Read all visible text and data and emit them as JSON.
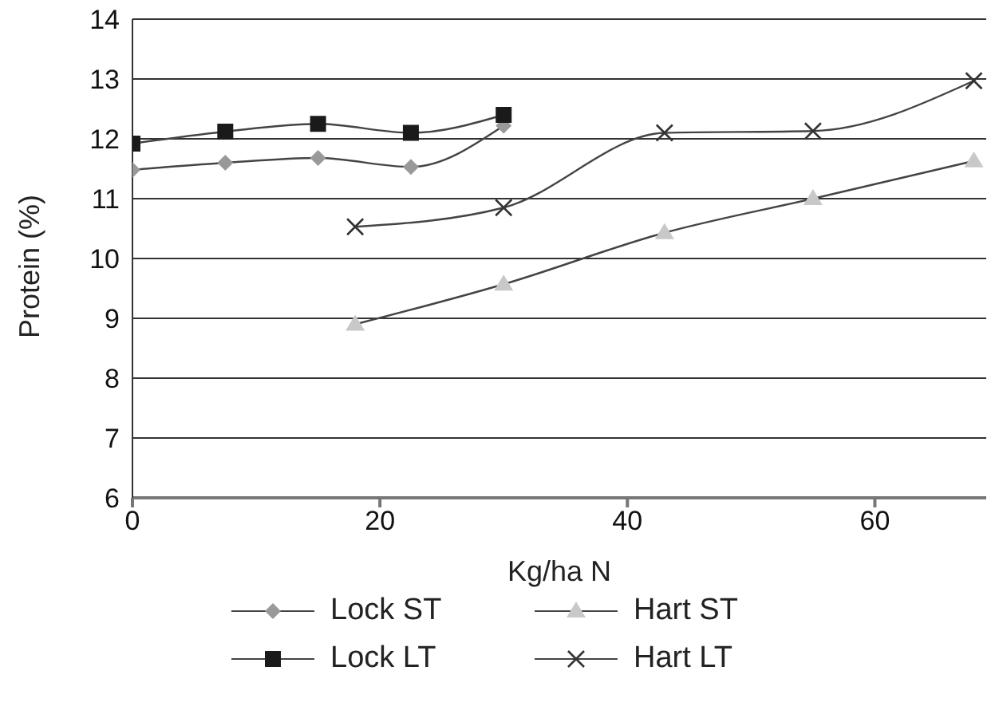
{
  "chart_data": {
    "type": "line",
    "xlabel": "Kg/ha N",
    "ylabel": "Protein (%)",
    "xlim": [
      0,
      69
    ],
    "xticks": [
      0,
      20,
      40,
      60
    ],
    "ylim": [
      6,
      14
    ],
    "yticks": [
      6,
      7,
      8,
      9,
      10,
      11,
      12,
      13,
      14
    ],
    "grid": "y",
    "legend": "bottom",
    "line_style": "solid",
    "series": [
      {
        "name": "Lock ST",
        "color": "#999999",
        "marker": "diamond",
        "x": [
          0,
          7.5,
          15,
          22.5,
          30
        ],
        "values": [
          11.48,
          11.6,
          11.68,
          11.53,
          12.22
        ]
      },
      {
        "name": "Hart ST",
        "color": "#c8c8c8",
        "marker": "triangle",
        "x": [
          18,
          30,
          43,
          55,
          68
        ],
        "values": [
          8.9,
          9.57,
          10.43,
          11.0,
          11.63
        ]
      },
      {
        "name": "Lock LT",
        "color": "#1a1a1a",
        "marker": "square",
        "x": [
          0,
          7.5,
          15,
          22.5,
          30
        ],
        "values": [
          11.92,
          12.12,
          12.25,
          12.1,
          12.4
        ]
      },
      {
        "name": "Hart LT",
        "color": "#333333",
        "marker": "cross",
        "x": [
          18,
          30,
          43,
          55,
          68
        ],
        "values": [
          10.53,
          10.85,
          12.1,
          12.13,
          12.97
        ]
      }
    ]
  }
}
